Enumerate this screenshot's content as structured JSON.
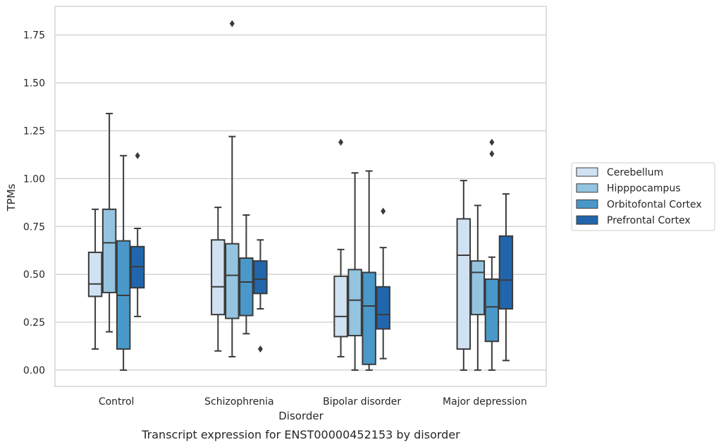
{
  "caption": "Transcript expression for ENST00000452153 by disorder",
  "chart_data": {
    "type": "boxplot",
    "xlabel": "Disorder",
    "ylabel": "TPMs",
    "ylim": [
      -0.085,
      1.9
    ],
    "yticks": [
      0.0,
      0.25,
      0.5,
      0.75,
      1.0,
      1.25,
      1.5,
      1.75
    ],
    "ytick_labels": [
      "0.00",
      "0.25",
      "0.50",
      "0.75",
      "1.00",
      "1.25",
      "1.50",
      "1.75"
    ],
    "grid": true,
    "legend_placement": "right",
    "categories": [
      "Control",
      "Schizophrenia",
      "Bipolar disorder",
      "Major depression"
    ],
    "series": [
      {
        "name": "Cerebellum",
        "color": "#d0e1f2",
        "boxes": [
          {
            "whislo": 0.11,
            "q1": 0.385,
            "med": 0.45,
            "q3": 0.615,
            "whishi": 0.84,
            "fliers": []
          },
          {
            "whislo": 0.1,
            "q1": 0.29,
            "med": 0.435,
            "q3": 0.68,
            "whishi": 0.85,
            "fliers": []
          },
          {
            "whislo": 0.07,
            "q1": 0.175,
            "med": 0.28,
            "q3": 0.49,
            "whishi": 0.63,
            "fliers": [
              1.19
            ]
          },
          {
            "whislo": 0.0,
            "q1": 0.11,
            "med": 0.6,
            "q3": 0.79,
            "whishi": 0.99,
            "fliers": []
          }
        ]
      },
      {
        "name": "Hipppocampus",
        "color": "#94c4df",
        "boxes": [
          {
            "whislo": 0.2,
            "q1": 0.405,
            "med": 0.665,
            "q3": 0.84,
            "whishi": 1.34,
            "fliers": []
          },
          {
            "whislo": 0.07,
            "q1": 0.27,
            "med": 0.495,
            "q3": 0.66,
            "whishi": 1.22,
            "fliers": [
              1.81
            ]
          },
          {
            "whislo": 0.0,
            "q1": 0.18,
            "med": 0.365,
            "q3": 0.525,
            "whishi": 1.03,
            "fliers": []
          },
          {
            "whislo": 0.0,
            "q1": 0.29,
            "med": 0.51,
            "q3": 0.57,
            "whishi": 0.86,
            "fliers": []
          }
        ]
      },
      {
        "name": "Orbitofontal Cortex",
        "color": "#4a98c9",
        "boxes": [
          {
            "whislo": 0.0,
            "q1": 0.11,
            "med": 0.39,
            "q3": 0.675,
            "whishi": 1.12,
            "fliers": []
          },
          {
            "whislo": 0.19,
            "q1": 0.285,
            "med": 0.46,
            "q3": 0.585,
            "whishi": 0.81,
            "fliers": []
          },
          {
            "whislo": 0.0,
            "q1": 0.03,
            "med": 0.335,
            "q3": 0.51,
            "whishi": 1.04,
            "fliers": []
          },
          {
            "whislo": 0.0,
            "q1": 0.15,
            "med": 0.33,
            "q3": 0.475,
            "whishi": 0.59,
            "fliers": [
              1.13,
              1.19
            ]
          }
        ]
      },
      {
        "name": "Prefrontal Cortex",
        "color": "#2166ac",
        "boxes": [
          {
            "whislo": 0.28,
            "q1": 0.43,
            "med": 0.54,
            "q3": 0.645,
            "whishi": 0.74,
            "fliers": [
              1.12
            ]
          },
          {
            "whislo": 0.32,
            "q1": 0.4,
            "med": 0.475,
            "q3": 0.57,
            "whishi": 0.68,
            "fliers": [
              0.11
            ]
          },
          {
            "whislo": 0.06,
            "q1": 0.215,
            "med": 0.29,
            "q3": 0.435,
            "whishi": 0.64,
            "fliers": [
              0.83
            ]
          },
          {
            "whislo": 0.05,
            "q1": 0.32,
            "med": 0.47,
            "q3": 0.7,
            "whishi": 0.92,
            "fliers": []
          }
        ]
      }
    ]
  }
}
